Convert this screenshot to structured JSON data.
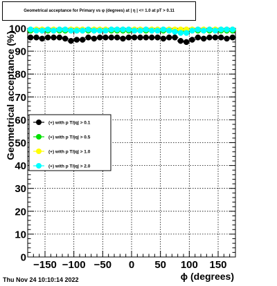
{
  "title": "Geometrical acceptance for Primary vs φ (degrees) at | η | <= 1.0 at pT > 0.11",
  "footer": "Thu Nov 24 10:10:14 2022",
  "chart_data": {
    "type": "scatter",
    "xlabel": "ϕ (degrees)",
    "ylabel": "Geometrical acceptance (%)",
    "xlim": [
      -180,
      180
    ],
    "ylim": [
      0,
      100
    ],
    "xticks": [
      -150,
      -100,
      -50,
      0,
      50,
      100,
      150
    ],
    "xtick_labels": [
      "−150",
      "−100",
      "−50",
      "0",
      "50",
      "100",
      "150"
    ],
    "yticks": [
      0,
      10,
      20,
      30,
      40,
      50,
      60,
      70,
      80,
      90,
      100
    ],
    "ytick_labels": [
      "0",
      "10",
      "20",
      "30",
      "40",
      "50",
      "60",
      "70",
      "80",
      "90",
      "100"
    ],
    "grid": true,
    "legend_position": "left-middle",
    "x": [
      -175,
      -165,
      -155,
      -145,
      -135,
      -125,
      -115,
      -105,
      -95,
      -85,
      -75,
      -65,
      -55,
      -45,
      -35,
      -25,
      -15,
      -5,
      5,
      15,
      25,
      35,
      45,
      55,
      65,
      75,
      85,
      95,
      105,
      115,
      125,
      135,
      145,
      155,
      165,
      175
    ],
    "series": [
      {
        "name": "(+) with p T/|q| > 0.1",
        "color": "#000000",
        "values": [
          96,
          96,
          95.5,
          96,
          96,
          96,
          95.5,
          94.5,
          95,
          95,
          96,
          95.5,
          96,
          96,
          96,
          96,
          95.5,
          96,
          96,
          96,
          96,
          96,
          96,
          95.5,
          96,
          96,
          94.5,
          94,
          95,
          96,
          95.5,
          96,
          96,
          96,
          95.5,
          96
        ]
      },
      {
        "name": "(+) with p T/|q| > 0.5",
        "color": "#00e000",
        "values": [
          99,
          99,
          99,
          99,
          99,
          99,
          99,
          99,
          99,
          99,
          99,
          99,
          99,
          99,
          99,
          99,
          99,
          99,
          99,
          99,
          99,
          99,
          99,
          99,
          99,
          99,
          99,
          99,
          99,
          99,
          99,
          99,
          99,
          99,
          99,
          99
        ]
      },
      {
        "name": "(+) with p T/|q| > 1.0",
        "color": "#ffff00",
        "values": [
          99.5,
          99.5,
          99.5,
          99.5,
          99.5,
          99.5,
          99.5,
          99.5,
          99.5,
          99.5,
          99.5,
          99.5,
          99.5,
          99.5,
          99.5,
          99.5,
          99.5,
          99.5,
          99.5,
          99.5,
          99.5,
          99.5,
          99.5,
          99.5,
          99.5,
          99.5,
          99.5,
          99.5,
          99.5,
          99.5,
          99.5,
          99.5,
          99.5,
          99.5,
          99.5,
          99.5
        ]
      },
      {
        "name": "(+) with p T/|q| > 2.0",
        "color": "#00ffff",
        "values": [
          99.5,
          99,
          99,
          99.5,
          99,
          99.5,
          99.5,
          99,
          99,
          99,
          99.5,
          99,
          99,
          99,
          99.5,
          99.5,
          99.5,
          99.5,
          99,
          99,
          99.5,
          99,
          99,
          99.5,
          99,
          98.5,
          98,
          98,
          99,
          99.5,
          99,
          99.5,
          99,
          99.5,
          99.5,
          99.5
        ]
      }
    ]
  }
}
